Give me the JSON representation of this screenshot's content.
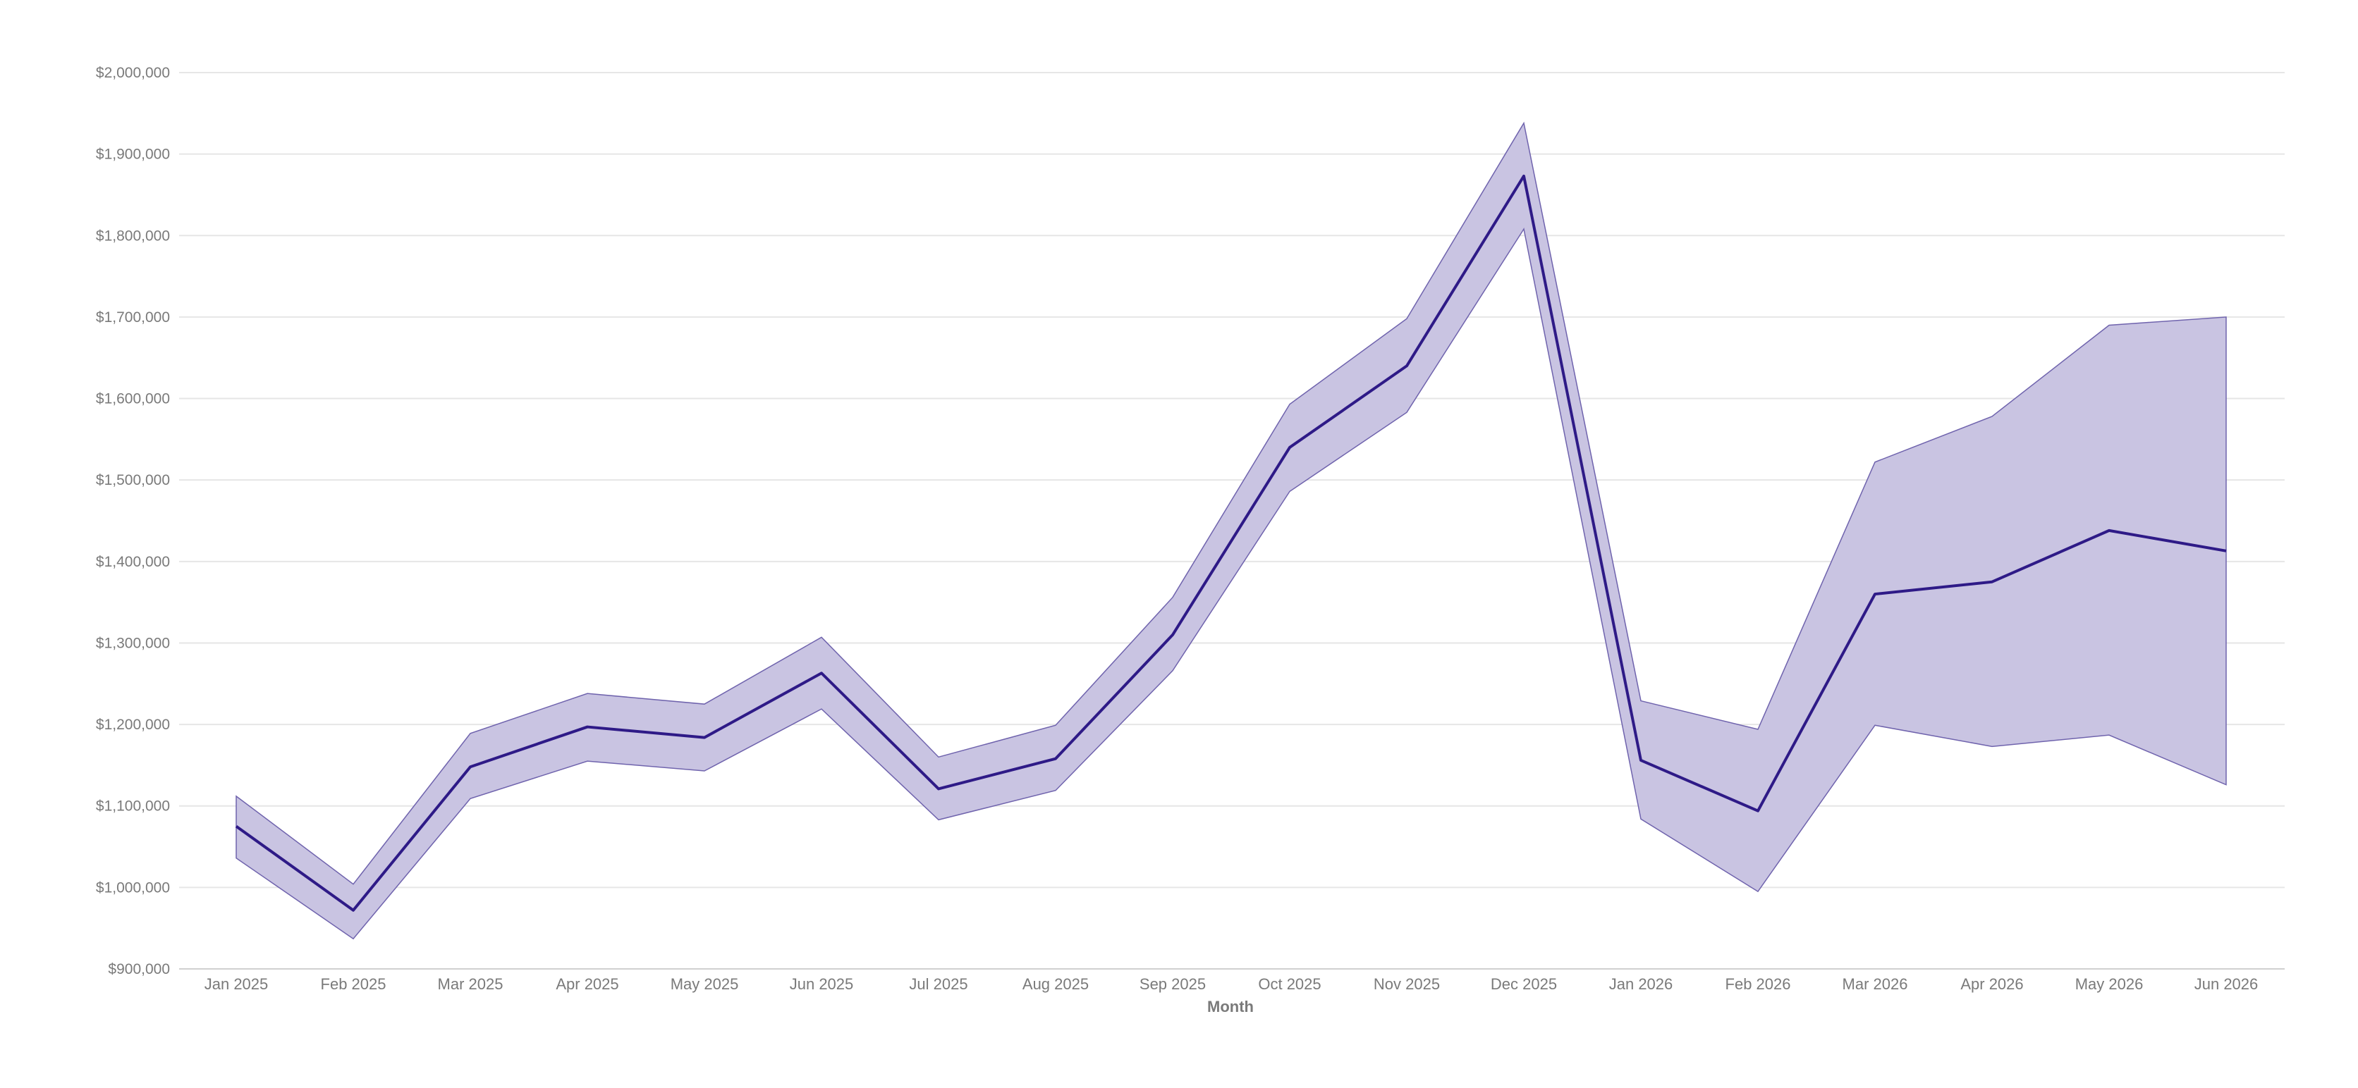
{
  "chart_data": {
    "type": "line",
    "title": "",
    "xlabel": "Month",
    "ylabel": "",
    "x": [
      "Jan 2025",
      "Feb 2025",
      "Mar 2025",
      "Apr 2025",
      "May 2025",
      "Jun 2025",
      "Jul 2025",
      "Aug 2025",
      "Sep 2025",
      "Oct 2025",
      "Nov 2025",
      "Dec 2025",
      "Jan 2026",
      "Feb 2026",
      "Mar 2026",
      "Apr 2026",
      "May 2026",
      "Jun 2026"
    ],
    "series": [
      {
        "values": [
          1075000,
          972000,
          1148000,
          1197000,
          1184000,
          1263000,
          1121000,
          1158000,
          1310000,
          1540000,
          1640000,
          1873000,
          1156000,
          1094000,
          1360000,
          1375000,
          1438000,
          1413000
        ],
        "upper": [
          1112000,
          1004000,
          1189000,
          1238000,
          1225000,
          1307000,
          1160000,
          1199000,
          1356000,
          1593000,
          1698000,
          1938000,
          1229000,
          1194000,
          1522000,
          1578000,
          1690000,
          1700000
        ],
        "lower": [
          1036000,
          937000,
          1109000,
          1155000,
          1143000,
          1219000,
          1083000,
          1119000,
          1266000,
          1486000,
          1583000,
          1808000,
          1084000,
          995000,
          1199000,
          1173000,
          1187000,
          1126000
        ]
      }
    ],
    "yticks": [
      "$900,000",
      "$1,000,000",
      "$1,100,000",
      "$1,200,000",
      "$1,300,000",
      "$1,400,000",
      "$1,500,000",
      "$1,600,000",
      "$1,700,000",
      "$1,800,000",
      "$1,900,000",
      "$2,000,000"
    ],
    "ylim": [
      900000,
      2000000
    ],
    "grid": true,
    "legend": "none",
    "colors": {
      "line": "#2e1a87",
      "band_fill": "#c9c4e2",
      "band_stroke": "#6f63ad"
    }
  }
}
